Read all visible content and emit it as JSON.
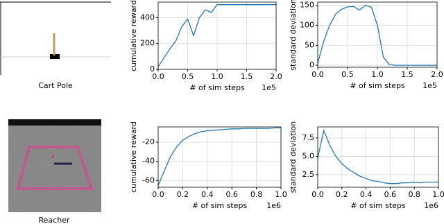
{
  "images": [
    {
      "caption": "Cart Pole"
    },
    {
      "caption": "Reacher"
    }
  ],
  "chart_data": [
    {
      "type": "line",
      "xlabel": "# of sim steps",
      "ylabel": "cumulative reward",
      "x_offset_label": "1e5",
      "x": [
        0,
        0.1,
        0.2,
        0.3,
        0.4,
        0.5,
        0.6,
        0.7,
        0.8,
        0.9,
        1.0,
        1.1,
        1.2,
        1.3,
        1.4,
        1.5,
        1.6,
        1.7,
        1.8,
        1.9,
        2.0
      ],
      "series": [
        {
          "color": "#1f77b4",
          "values": [
            20,
            90,
            160,
            220,
            330,
            390,
            260,
            400,
            460,
            440,
            500,
            500,
            500,
            500,
            500,
            500,
            500,
            500,
            500,
            500,
            500
          ]
        }
      ],
      "xlim": [
        0,
        2
      ],
      "ylim": [
        0,
        520
      ],
      "xticks": [
        {
          "value": 0,
          "label": "0.0"
        },
        {
          "value": 0.5,
          "label": "0.5"
        },
        {
          "value": 1,
          "label": "1.0"
        },
        {
          "value": 1.5,
          "label": "1.5"
        },
        {
          "value": 2,
          "label": "2.0"
        }
      ],
      "yticks": [
        0,
        200,
        400
      ],
      "grid": true
    },
    {
      "type": "line",
      "xlabel": "# of sim steps",
      "ylabel": "standard deviation",
      "x_offset_label": "1e5",
      "x": [
        0,
        0.1,
        0.2,
        0.3,
        0.4,
        0.5,
        0.6,
        0.7,
        0.8,
        0.9,
        1.0,
        1.1,
        1.2,
        1.3,
        1.4,
        1.5,
        1.6,
        1.7,
        1.8,
        1.9,
        2.0
      ],
      "series": [
        {
          "color": "#1f77b4",
          "values": [
            5,
            60,
            100,
            128,
            140,
            146,
            147,
            138,
            150,
            145,
            100,
            20,
            2,
            0,
            0,
            0,
            0,
            0,
            0,
            0,
            0
          ]
        }
      ],
      "xlim": [
        0,
        2
      ],
      "ylim": [
        -5,
        158
      ],
      "xticks": [
        {
          "value": 0,
          "label": "0.0"
        },
        {
          "value": 0.5,
          "label": "0.5"
        },
        {
          "value": 1,
          "label": "1.0"
        },
        {
          "value": 1.5,
          "label": "1.5"
        },
        {
          "value": 2,
          "label": "2.0"
        }
      ],
      "yticks": [
        0,
        50,
        100,
        150
      ],
      "grid": true
    },
    {
      "type": "line",
      "xlabel": "# of sim steps",
      "ylabel": "cumulative reward",
      "x_offset_label": "1e6",
      "x": [
        0,
        0.05,
        0.1,
        0.15,
        0.2,
        0.25,
        0.3,
        0.35,
        0.4,
        0.45,
        0.5,
        0.55,
        0.6,
        0.65,
        0.7,
        0.75,
        0.8,
        0.85,
        0.9,
        0.95,
        1.0
      ],
      "series": [
        {
          "color": "#1f77b4",
          "values": [
            -65,
            -50,
            -35,
            -25,
            -18,
            -14,
            -11,
            -9,
            -8,
            -7.5,
            -7,
            -6.5,
            -6,
            -6,
            -5.5,
            -5.5,
            -5.5,
            -5.5,
            -5.5,
            -5,
            -5
          ]
        }
      ],
      "xlim": [
        0,
        1
      ],
      "ylim": [
        -67,
        -4
      ],
      "xticks": [
        {
          "value": 0,
          "label": "0.0"
        },
        {
          "value": 0.2,
          "label": "0.2"
        },
        {
          "value": 0.4,
          "label": "0.4"
        },
        {
          "value": 0.6,
          "label": "0.6"
        },
        {
          "value": 0.8,
          "label": "0.8"
        },
        {
          "value": 1,
          "label": "1.0"
        }
      ],
      "yticks": [
        -60,
        -40,
        -20
      ],
      "grid": true
    },
    {
      "type": "line",
      "xlabel": "# of sim steps",
      "ylabel": "standard deviation",
      "x_offset_label": "1e6",
      "x": [
        0,
        0.05,
        0.1,
        0.15,
        0.2,
        0.25,
        0.3,
        0.35,
        0.4,
        0.45,
        0.5,
        0.55,
        0.6,
        0.65,
        0.7,
        0.75,
        0.8,
        0.85,
        0.9,
        0.95,
        1.0
      ],
      "series": [
        {
          "color": "#1f77b4",
          "values": [
            4.8,
            8.5,
            6.5,
            5,
            4,
            3.3,
            2.8,
            2.3,
            2,
            1.7,
            1.6,
            1.4,
            1.3,
            1.3,
            1.4,
            1.4,
            1.5,
            1.4,
            1.5,
            1.5,
            1.5
          ]
        }
      ],
      "xlim": [
        0,
        1
      ],
      "ylim": [
        0.8,
        9
      ],
      "xticks": [
        {
          "value": 0,
          "label": "0.0"
        },
        {
          "value": 0.2,
          "label": "0.2"
        },
        {
          "value": 0.4,
          "label": "0.4"
        },
        {
          "value": 0.6,
          "label": "0.6"
        },
        {
          "value": 0.8,
          "label": "0.8"
        },
        {
          "value": 1,
          "label": "1.0"
        }
      ],
      "yticks": [
        2.5,
        {
          "value": 5,
          "label": "5.0"
        },
        7.5
      ],
      "grid": true
    }
  ]
}
